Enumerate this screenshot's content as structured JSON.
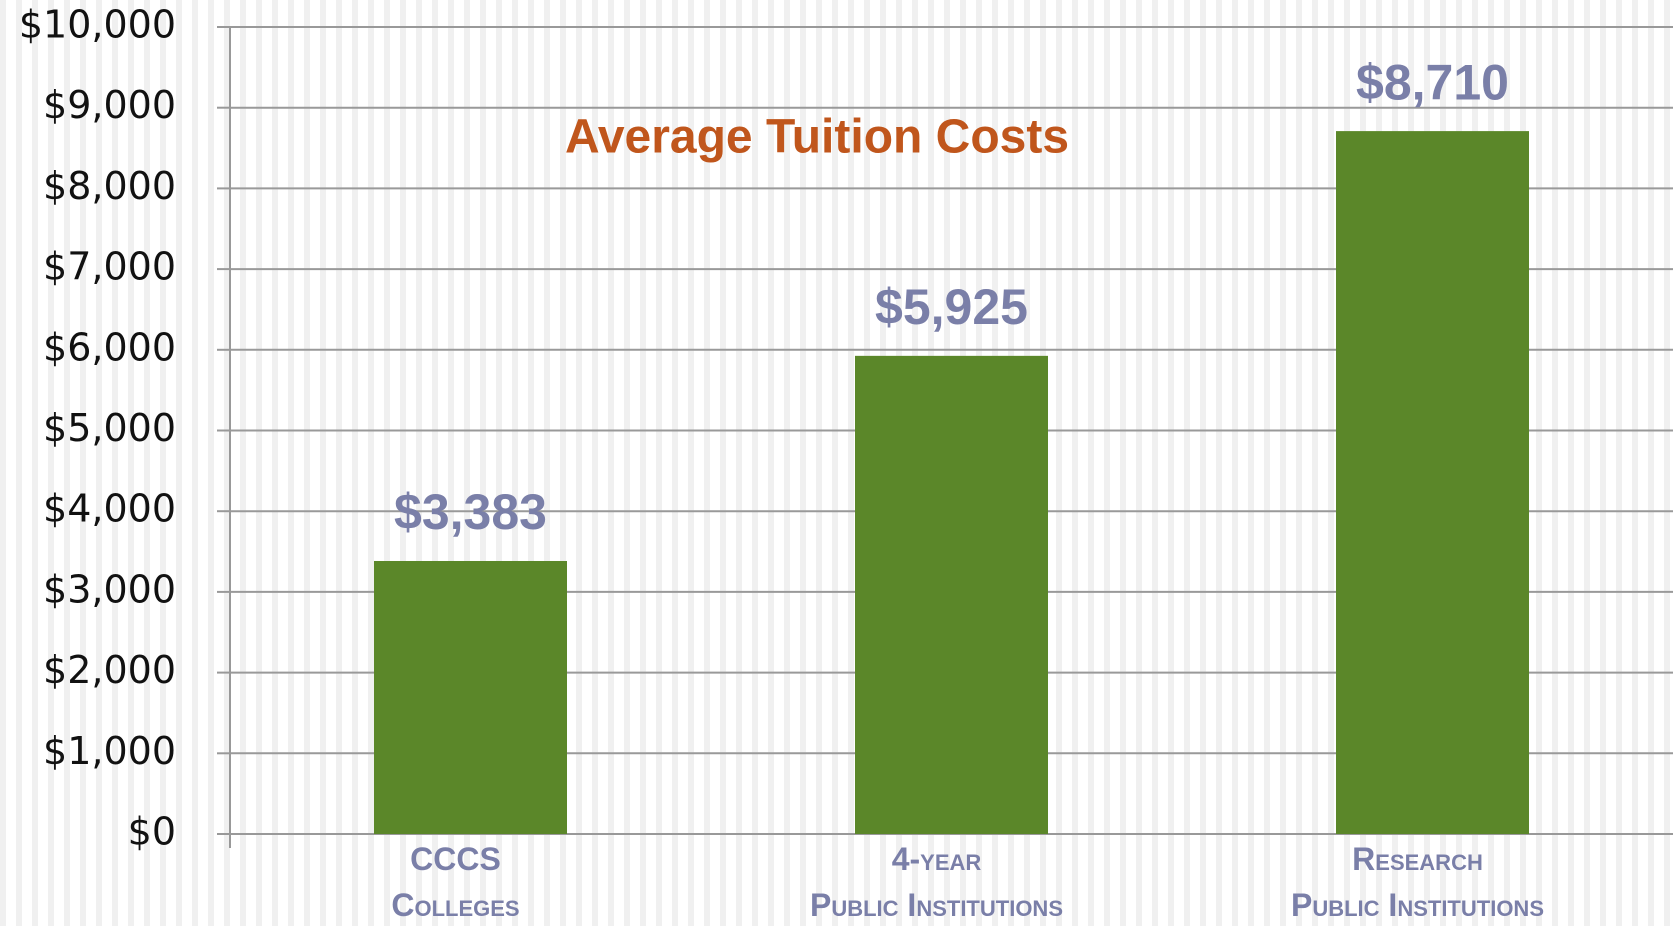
{
  "chart_data": {
    "type": "bar",
    "title": "Average Tuition Costs",
    "categories": [
      "CCCS Colleges",
      "4-year Public Institutions",
      "Research Public Institutions"
    ],
    "values": [
      3383,
      5925,
      8710
    ],
    "value_labels": [
      "$3,383",
      "$5,925",
      "$8,710"
    ],
    "color": "#5b8729",
    "ylim": [
      0,
      10000
    ],
    "yticks": [
      {
        "value": 0,
        "label": "$0"
      },
      {
        "value": 1000,
        "label": "$1,000"
      },
      {
        "value": 2000,
        "label": "$2,000"
      },
      {
        "value": 3000,
        "label": "$3,000"
      },
      {
        "value": 4000,
        "label": "$4,000"
      },
      {
        "value": 5000,
        "label": "$5,000"
      },
      {
        "value": 6000,
        "label": "$6,000"
      },
      {
        "value": 7000,
        "label": "$7,000"
      },
      {
        "value": 8000,
        "label": "$8,000"
      },
      {
        "value": 9000,
        "label": "$9,000"
      },
      {
        "value": 10000,
        "label": "$10,000"
      }
    ],
    "grid": true
  }
}
